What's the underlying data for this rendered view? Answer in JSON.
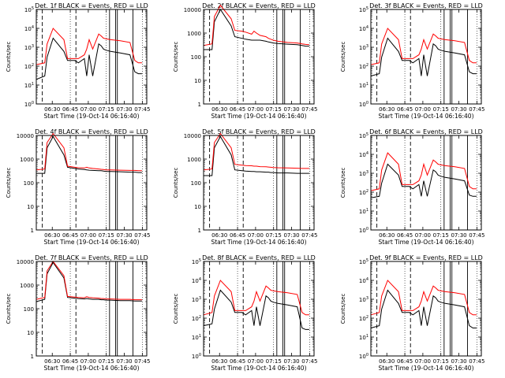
{
  "figure": {
    "xlabel": "Start Time (19-Oct-14 06:16:40)",
    "ylabel": "Counts/sec",
    "x_tick_labels": [
      "06:30",
      "06:45",
      "07:00",
      "07:15",
      "07:30",
      "07:45"
    ],
    "legend_note": "BLACK = Events, RED = LLD"
  },
  "colors": {
    "events": "#000000",
    "lld": "#ff0000"
  },
  "chart_data": [
    {
      "type": "line",
      "title": "Det. 1f BLACK = Events, RED = LLD",
      "ylabel": "Counts/sec",
      "xlabel": "Start Time (19-Oct-14 06:16:40)",
      "yscale": "log",
      "ylim": [
        1,
        100000
      ],
      "ytick_labels": [
        "10^0",
        "10^1",
        "10^2",
        "10^3",
        "10^4",
        "10^5"
      ],
      "x_minutes_from_start": [
        0,
        7,
        9,
        14,
        23,
        26,
        32,
        35,
        40,
        42,
        44,
        47,
        52,
        54,
        56,
        58,
        62,
        70,
        78,
        82,
        85,
        88
      ],
      "series": [
        {
          "name": "Events",
          "values": [
            20,
            30,
            300,
            3000,
            600,
            200,
            200,
            150,
            250,
            30,
            400,
            30,
            1500,
            1200,
            800,
            700,
            600,
            500,
            400,
            50,
            40,
            40
          ]
        },
        {
          "name": "LLD",
          "values": [
            120,
            150,
            1500,
            10000,
            2500,
            250,
            250,
            250,
            400,
            800,
            2500,
            800,
            5000,
            4000,
            3000,
            2800,
            2500,
            2200,
            1800,
            200,
            150,
            150
          ]
        }
      ]
    },
    {
      "type": "line",
      "title": "Det. 2f BLACK = Events, RED = LLD",
      "ylabel": "Counts/sec",
      "xlabel": "Start Time (19-Oct-14 06:16:40)",
      "yscale": "log",
      "ylim": [
        1,
        10000
      ],
      "ytick_labels": [
        "1",
        "10",
        "100",
        "1000",
        "10000"
      ],
      "x_minutes_from_start": [
        0,
        7,
        9,
        14,
        23,
        26,
        32,
        35,
        40,
        42,
        44,
        47,
        52,
        54,
        56,
        58,
        62,
        70,
        78,
        82,
        85,
        88
      ],
      "series": [
        {
          "name": "Events",
          "values": [
            200,
            200,
            3000,
            10000,
            2000,
            700,
            600,
            550,
            500,
            500,
            500,
            500,
            450,
            420,
            400,
            380,
            360,
            340,
            320,
            300,
            280,
            280
          ]
        },
        {
          "name": "LLD",
          "values": [
            300,
            350,
            5000,
            15000,
            4000,
            1300,
            1200,
            1100,
            900,
            1200,
            1000,
            800,
            700,
            600,
            550,
            500,
            450,
            400,
            380,
            350,
            330,
            320
          ]
        }
      ]
    },
    {
      "type": "line",
      "title": "Det. 3f BLACK = Events, RED = LLD",
      "ylabel": "Counts/sec",
      "xlabel": "Start Time (19-Oct-14 06:16:40)",
      "yscale": "log",
      "ylim": [
        1,
        100000
      ],
      "ytick_labels": [
        "10^0",
        "10^1",
        "10^2",
        "10^3",
        "10^4",
        "10^5"
      ],
      "x_minutes_from_start": [
        0,
        7,
        9,
        14,
        23,
        26,
        32,
        35,
        40,
        42,
        44,
        47,
        52,
        54,
        56,
        58,
        62,
        70,
        78,
        82,
        85,
        88
      ],
      "series": [
        {
          "name": "Events",
          "values": [
            30,
            40,
            300,
            3000,
            600,
            200,
            200,
            150,
            250,
            30,
            400,
            30,
            1500,
            1200,
            800,
            700,
            600,
            500,
            400,
            50,
            40,
            40
          ]
        },
        {
          "name": "LLD",
          "values": [
            120,
            150,
            1500,
            10000,
            2500,
            250,
            250,
            250,
            400,
            800,
            2500,
            800,
            5000,
            4000,
            3000,
            2800,
            2500,
            2200,
            1800,
            200,
            150,
            150
          ]
        }
      ]
    },
    {
      "type": "line",
      "title": "Det. 4f BLACK = Events, RED = LLD",
      "ylabel": "Counts/sec",
      "xlabel": "Start Time (19-Oct-14 06:16:40)",
      "yscale": "log",
      "ylim": [
        1,
        10000
      ],
      "ytick_labels": [
        "1",
        "10",
        "100",
        "1000",
        "10000"
      ],
      "x_minutes_from_start": [
        0,
        7,
        9,
        14,
        23,
        26,
        32,
        35,
        40,
        42,
        44,
        47,
        52,
        54,
        56,
        58,
        62,
        70,
        78,
        82,
        85,
        88
      ],
      "series": [
        {
          "name": "Events",
          "values": [
            250,
            250,
            3000,
            9000,
            1500,
            450,
            400,
            380,
            360,
            350,
            340,
            330,
            320,
            320,
            310,
            300,
            300,
            290,
            280,
            280,
            270,
            270
          ]
        },
        {
          "name": "LLD",
          "values": [
            350,
            380,
            5000,
            12000,
            3000,
            500,
            450,
            430,
            420,
            450,
            420,
            400,
            380,
            370,
            360,
            350,
            350,
            340,
            330,
            330,
            320,
            320
          ]
        }
      ]
    },
    {
      "type": "line",
      "title": "Det. 5f BLACK = Events, RED = LLD",
      "ylabel": "Counts/sec",
      "xlabel": "Start Time (19-Oct-14 06:16:40)",
      "yscale": "log",
      "ylim": [
        1,
        10000
      ],
      "ytick_labels": [
        "1",
        "10",
        "100",
        "1000",
        "10000"
      ],
      "x_minutes_from_start": [
        0,
        7,
        9,
        14,
        23,
        26,
        32,
        35,
        40,
        42,
        44,
        47,
        52,
        54,
        56,
        58,
        62,
        70,
        78,
        82,
        85,
        88
      ],
      "series": [
        {
          "name": "Events",
          "values": [
            200,
            200,
            3000,
            9000,
            1500,
            350,
            320,
            310,
            300,
            300,
            290,
            290,
            280,
            280,
            270,
            270,
            260,
            260,
            250,
            250,
            250,
            250
          ]
        },
        {
          "name": "LLD",
          "values": [
            350,
            380,
            5000,
            12000,
            3000,
            600,
            550,
            530,
            520,
            500,
            500,
            480,
            470,
            460,
            450,
            440,
            430,
            420,
            410,
            400,
            400,
            400
          ]
        }
      ]
    },
    {
      "type": "line",
      "title": "Det. 6f BLACK = Events, RED = LLD",
      "ylabel": "Counts/sec",
      "xlabel": "Start Time (19-Oct-14 06:16:40)",
      "yscale": "log",
      "ylim": [
        1,
        100000
      ],
      "ytick_labels": [
        "10^0",
        "10^1",
        "10^2",
        "10^3",
        "10^4",
        "10^5"
      ],
      "x_minutes_from_start": [
        0,
        7,
        9,
        14,
        23,
        26,
        32,
        35,
        40,
        42,
        44,
        47,
        52,
        54,
        56,
        58,
        62,
        70,
        78,
        82,
        85,
        88
      ],
      "series": [
        {
          "name": "Events",
          "values": [
            50,
            60,
            300,
            3000,
            800,
            200,
            200,
            150,
            250,
            60,
            400,
            60,
            1500,
            1200,
            800,
            700,
            600,
            500,
            400,
            70,
            60,
            60
          ]
        },
        {
          "name": "LLD",
          "values": [
            120,
            150,
            1500,
            12000,
            3000,
            250,
            250,
            250,
            400,
            800,
            3000,
            800,
            5000,
            4000,
            3000,
            2800,
            2500,
            2200,
            1800,
            200,
            150,
            150
          ]
        }
      ]
    },
    {
      "type": "line",
      "title": "Det. 7f BLACK = Events, RED = LLD",
      "ylabel": "Counts/sec",
      "xlabel": "Start Time (19-Oct-14 06:16:40)",
      "yscale": "log",
      "ylim": [
        1,
        10000
      ],
      "ytick_labels": [
        "1",
        "10",
        "100",
        "1000",
        "10000"
      ],
      "x_minutes_from_start": [
        0,
        7,
        9,
        14,
        23,
        26,
        32,
        35,
        40,
        42,
        44,
        47,
        52,
        54,
        56,
        58,
        62,
        70,
        78,
        82,
        85,
        88
      ],
      "series": [
        {
          "name": "Events",
          "values": [
            200,
            250,
            3000,
            9000,
            2000,
            300,
            280,
            270,
            260,
            270,
            260,
            250,
            250,
            240,
            240,
            230,
            230,
            220,
            220,
            210,
            210,
            210
          ]
        },
        {
          "name": "LLD",
          "values": [
            250,
            300,
            4000,
            10000,
            2500,
            330,
            310,
            300,
            290,
            320,
            300,
            290,
            280,
            270,
            270,
            260,
            260,
            250,
            250,
            240,
            240,
            240
          ]
        }
      ]
    },
    {
      "type": "line",
      "title": "Det. 8f BLACK = Events, RED = LLD",
      "ylabel": "Counts/sec",
      "xlabel": "Start Time (19-Oct-14 06:16:40)",
      "yscale": "log",
      "ylim": [
        1,
        100000
      ],
      "ytick_labels": [
        "10^0",
        "10^1",
        "10^2",
        "10^3",
        "10^4",
        "10^5"
      ],
      "x_minutes_from_start": [
        0,
        7,
        9,
        14,
        23,
        26,
        32,
        35,
        40,
        42,
        44,
        47,
        52,
        54,
        56,
        58,
        62,
        70,
        78,
        82,
        85,
        88
      ],
      "series": [
        {
          "name": "Events",
          "values": [
            40,
            50,
            300,
            3000,
            700,
            200,
            200,
            150,
            250,
            40,
            400,
            40,
            1500,
            1200,
            800,
            700,
            600,
            500,
            400,
            30,
            25,
            25
          ]
        },
        {
          "name": "LLD",
          "values": [
            150,
            200,
            1500,
            10000,
            2500,
            250,
            250,
            250,
            400,
            800,
            2500,
            800,
            5000,
            4000,
            3000,
            2800,
            2500,
            2200,
            1800,
            200,
            150,
            150
          ]
        }
      ]
    },
    {
      "type": "line",
      "title": "Det. 9f BLACK = Events, RED = LLD",
      "ylabel": "Counts/sec",
      "xlabel": "Start Time (19-Oct-14 06:16:40)",
      "yscale": "log",
      "ylim": [
        1,
        100000
      ],
      "ytick_labels": [
        "10^0",
        "10^1",
        "10^2",
        "10^3",
        "10^4",
        "10^5"
      ],
      "x_minutes_from_start": [
        0,
        7,
        9,
        14,
        23,
        26,
        32,
        35,
        40,
        42,
        44,
        47,
        52,
        54,
        56,
        58,
        62,
        70,
        78,
        82,
        85,
        88
      ],
      "series": [
        {
          "name": "Events",
          "values": [
            30,
            40,
            300,
            3000,
            600,
            200,
            200,
            150,
            250,
            40,
            400,
            40,
            1500,
            1200,
            800,
            700,
            600,
            500,
            400,
            40,
            30,
            30
          ]
        },
        {
          "name": "LLD",
          "values": [
            150,
            200,
            1500,
            10000,
            2500,
            250,
            250,
            250,
            400,
            800,
            2500,
            800,
            5000,
            4000,
            3000,
            2800,
            2500,
            2200,
            1800,
            200,
            150,
            150
          ]
        }
      ]
    }
  ]
}
